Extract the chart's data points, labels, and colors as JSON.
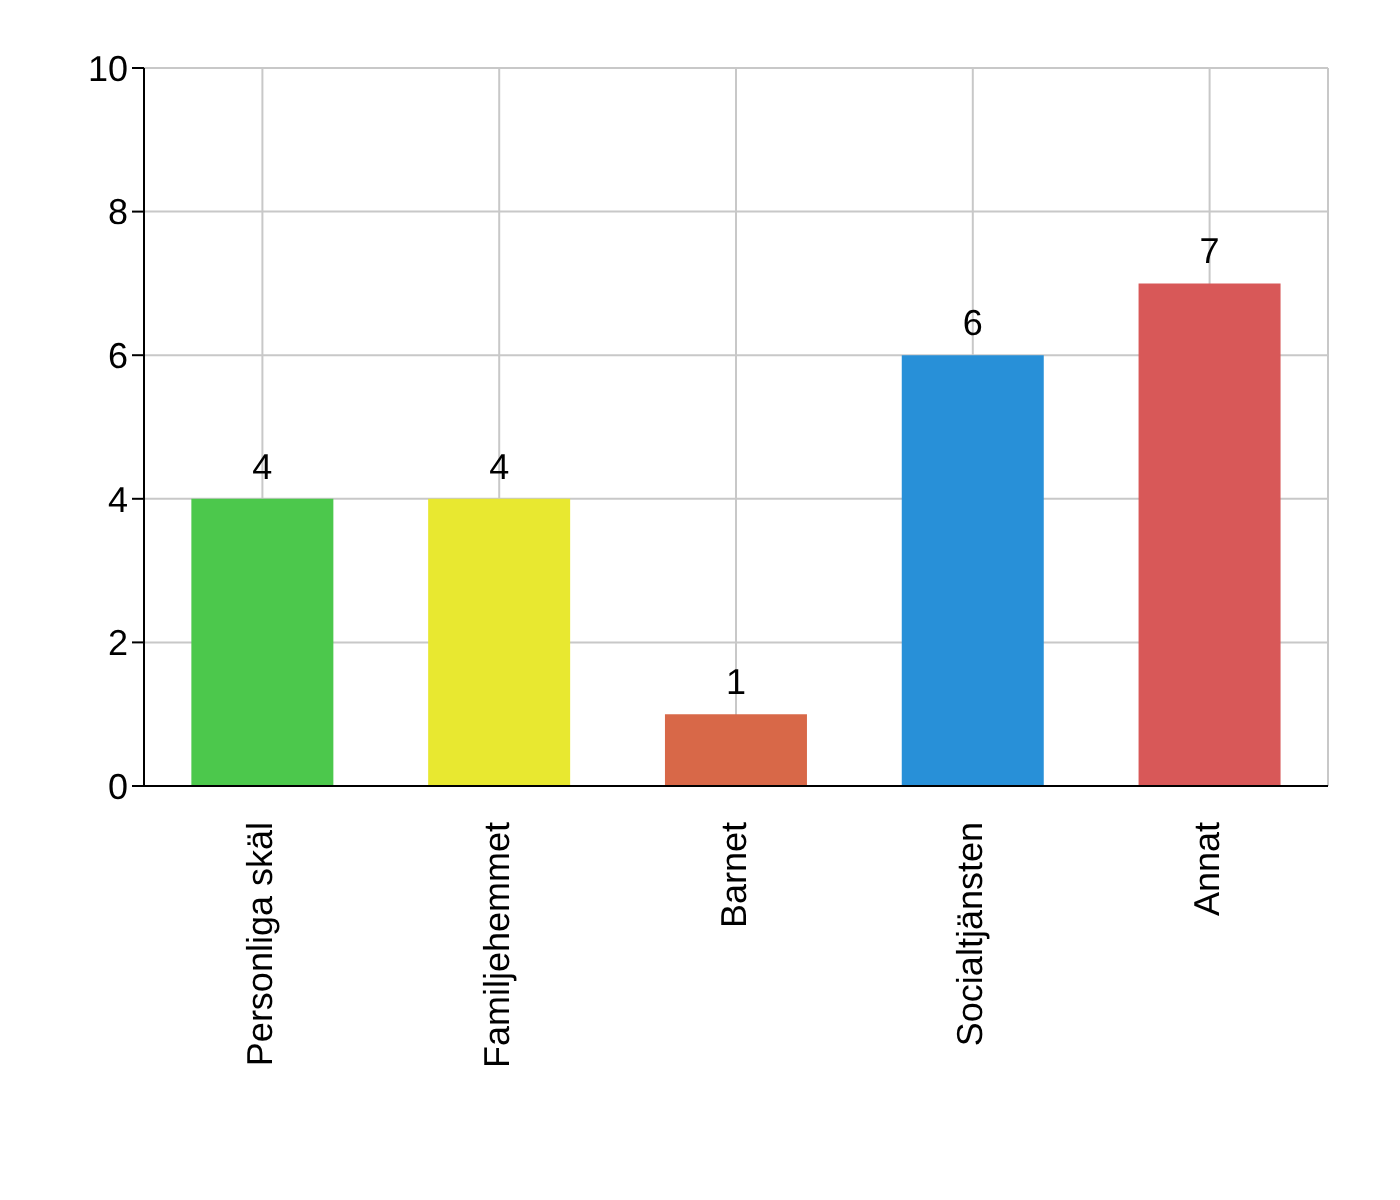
{
  "chart_data": {
    "type": "bar",
    "categories": [
      "Personliga skäl",
      "Familjehemmet",
      "Barnet",
      "Socialtjänsten",
      "Annat"
    ],
    "values": [
      4,
      4,
      1,
      6,
      7
    ],
    "colors": [
      "#4cc84c",
      "#e8e830",
      "#d86848",
      "#2890d8",
      "#d85858"
    ],
    "ylim": [
      0,
      10
    ],
    "yticks": [
      0,
      2,
      4,
      6,
      8,
      10
    ],
    "grid": true,
    "data_labels": true
  }
}
